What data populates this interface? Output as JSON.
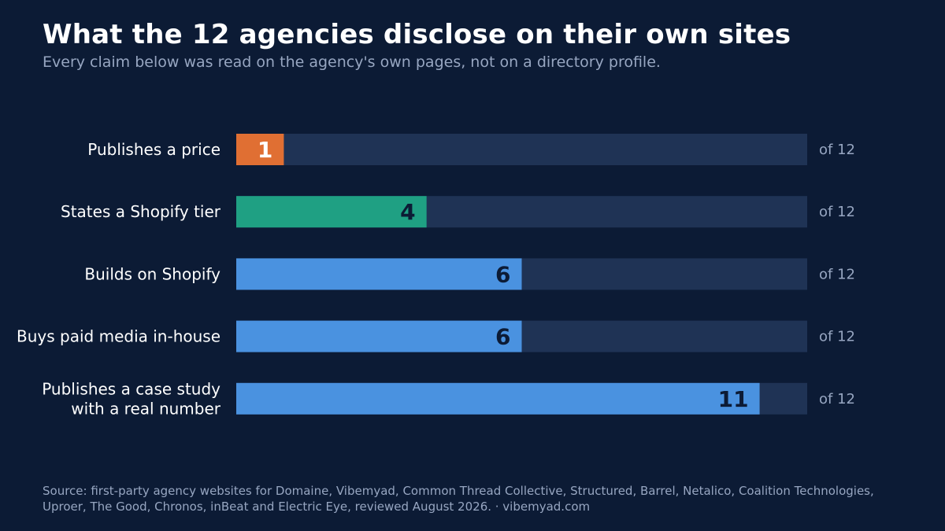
{
  "title": "What the 12 agencies disclose on their own sites",
  "subtitle": "Every claim below was read on the agency's own pages, not on a directory profile.",
  "source": "Source: first-party agency websites for Domaine, Vibemyad, Common Thread Collective, Structured, Barrel, Netalico, Coalition Technologies, Uproer, The Good, Chronos, inBeat and Electric Eye, reviewed August 2026.  ·  vibemyad.com",
  "colors": {
    "background": "#0c1b35",
    "track": "#1f3355",
    "accent_orange": "#e06f33",
    "accent_teal": "#1fa083",
    "accent_blue": "#4a92e0",
    "label_text": "#ffffff",
    "muted_text": "#97a6c1",
    "value_dark": "#0c1b35",
    "value_light": "#ffffff"
  },
  "chart_data": {
    "type": "bar",
    "orientation": "horizontal",
    "xlim": [
      0,
      12
    ],
    "grid": false,
    "categories": [
      "Publishes a price",
      "States a Shopify tier",
      "Builds on Shopify",
      "Buys paid media in-house",
      "Publishes a case study with a real number"
    ],
    "category_lines": [
      [
        "Publishes a price"
      ],
      [
        "States a Shopify tier"
      ],
      [
        "Builds on Shopify"
      ],
      [
        "Buys paid media in-house"
      ],
      [
        "Publishes a case study",
        "with a real number"
      ]
    ],
    "values": [
      1,
      4,
      6,
      6,
      11
    ],
    "total": 12,
    "total_label": "of 12",
    "bar_colors": [
      "#e06f33",
      "#1fa083",
      "#4a92e0",
      "#4a92e0",
      "#4a92e0"
    ],
    "value_label_colors": [
      "#ffffff",
      "#0c1b35",
      "#0c1b35",
      "#0c1b35",
      "#0c1b35"
    ]
  }
}
